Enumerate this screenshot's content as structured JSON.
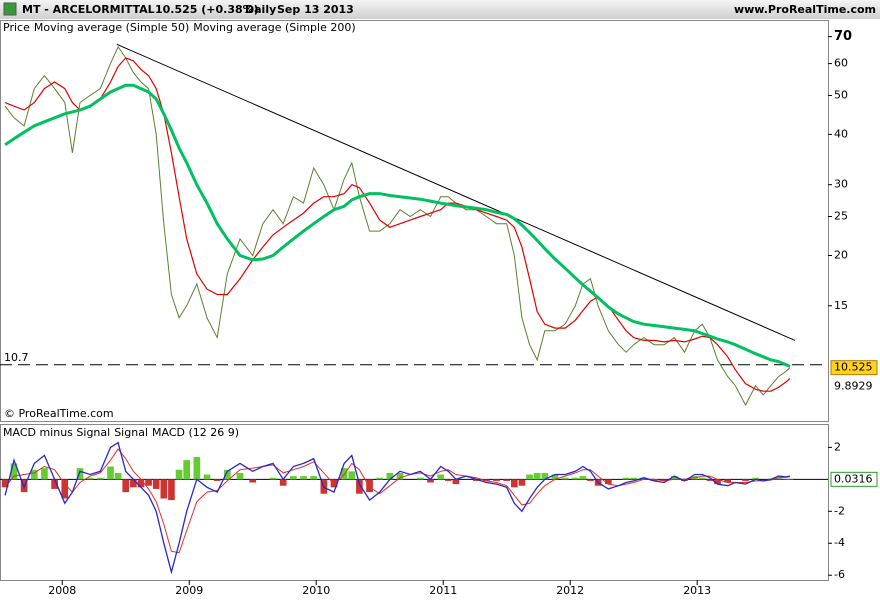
{
  "header": {
    "symbol": "MT - ARCELORMITTAL",
    "quote": "10.525 (+0.38%)",
    "period": "Daily",
    "date": "Sep 13 2013",
    "site": "www.ProRealTime.com"
  },
  "chart_data": [
    {
      "type": "line",
      "log_y": true,
      "copyright": "© ProRealTime.com",
      "x": [
        2007.55,
        2007.62,
        2007.7,
        2007.78,
        2007.86,
        2007.94,
        2008.02,
        2008.08,
        2008.14,
        2008.22,
        2008.3,
        2008.38,
        2008.44,
        2008.5,
        2008.56,
        2008.62,
        2008.68,
        2008.74,
        2008.8,
        2008.86,
        2008.92,
        2008.98,
        2009.06,
        2009.14,
        2009.22,
        2009.3,
        2009.4,
        2009.5,
        2009.58,
        2009.66,
        2009.74,
        2009.82,
        2009.9,
        2009.98,
        2010.06,
        2010.14,
        2010.22,
        2010.28,
        2010.34,
        2010.42,
        2010.5,
        2010.58,
        2010.66,
        2010.74,
        2010.82,
        2010.9,
        2010.98,
        2011.04,
        2011.1,
        2011.18,
        2011.26,
        2011.34,
        2011.42,
        2011.5,
        2011.56,
        2011.62,
        2011.68,
        2011.74,
        2011.8,
        2011.88,
        2011.96,
        2012.04,
        2012.1,
        2012.16,
        2012.22,
        2012.3,
        2012.38,
        2012.44,
        2012.5,
        2012.58,
        2012.66,
        2012.74,
        2012.82,
        2012.9,
        2012.98,
        2013.04,
        2013.1,
        2013.16,
        2013.24,
        2013.3,
        2013.38,
        2013.46,
        2013.52,
        2013.58,
        2013.64,
        2013.7,
        2013.73
      ],
      "series": [
        {
          "name": "Price",
          "color": "#5f7f2f",
          "width": 1,
          "values": [
            47,
            44,
            42,
            52,
            56,
            52,
            48,
            36,
            48,
            50,
            52,
            60,
            66,
            62,
            57,
            54,
            52,
            40,
            24,
            16,
            14,
            15,
            17,
            14,
            12.5,
            18,
            22,
            20,
            24,
            26,
            24,
            28,
            27,
            33,
            30,
            26,
            31,
            34,
            28,
            23,
            23,
            24,
            26,
            25,
            26,
            25,
            28,
            28,
            27,
            26,
            26,
            25,
            24,
            24,
            20,
            14,
            12,
            11,
            13,
            13,
            13.5,
            15,
            17,
            17.5,
            15,
            13,
            12,
            11.5,
            12,
            12.5,
            12,
            12,
            12.5,
            11.5,
            13,
            13.5,
            12.5,
            11,
            10,
            9.5,
            8.5,
            9.5,
            9,
            9.5,
            10,
            10.3,
            10.525
          ]
        },
        {
          "name": "Moving average (Simple 50)",
          "color": "#e00000",
          "width": 1.2,
          "values": [
            48,
            47,
            46,
            48,
            52,
            54,
            52,
            48,
            46,
            47,
            49,
            54,
            59,
            62,
            61,
            58,
            56,
            52,
            45,
            36,
            28,
            22,
            18,
            16.5,
            16,
            16,
            17.5,
            19.5,
            21,
            22.5,
            23.5,
            24.5,
            25.5,
            27,
            28,
            28,
            28.5,
            30,
            29.5,
            27,
            24.5,
            23.5,
            24,
            24.5,
            25,
            25.5,
            26,
            27,
            27,
            26.5,
            26,
            25.5,
            25,
            24.5,
            23.5,
            21,
            17.5,
            14.5,
            13.5,
            13.2,
            13.2,
            13.8,
            14.6,
            15.4,
            15.8,
            15,
            13.8,
            13,
            12.5,
            12.3,
            12.3,
            12.2,
            12.3,
            12.2,
            12.4,
            12.6,
            12.5,
            12,
            11.2,
            10.4,
            9.6,
            9.3,
            9.2,
            9.2,
            9.4,
            9.7,
            9.8929
          ]
        },
        {
          "name": "Moving average (Simple 200)",
          "color": "#00c060",
          "width": 3,
          "values": [
            37.7,
            39,
            40.5,
            42,
            43,
            44,
            45,
            45.5,
            46,
            47,
            49,
            51,
            52,
            53,
            53,
            52,
            51,
            49,
            45,
            41,
            37,
            34,
            30,
            27,
            24,
            22,
            20,
            19.5,
            19.6,
            20,
            21,
            22,
            23,
            24,
            25,
            26,
            26.5,
            27.5,
            28,
            28.5,
            28.5,
            28.2,
            28,
            27.8,
            27.6,
            27.3,
            27,
            26.8,
            26.6,
            26.4,
            26.2,
            26,
            25.6,
            25.3,
            24.7,
            23.8,
            22.8,
            21.8,
            20.8,
            19.6,
            18.6,
            17.6,
            16.9,
            16.3,
            15.7,
            14.9,
            14.3,
            14,
            13.7,
            13.5,
            13.4,
            13.3,
            13.2,
            13.1,
            13,
            12.8,
            12.6,
            12.4,
            12.2,
            12,
            11.7,
            11.4,
            11.2,
            11,
            10.9,
            10.7,
            10.6
          ]
        }
      ],
      "hline": 10.7,
      "trendline": {
        "x": [
          2008.43,
          2013.77
        ],
        "y": [
          67,
          12.3
        ]
      },
      "xlim": [
        2007.51,
        2014.03
      ],
      "ylim": [
        7.8,
        77
      ],
      "yticks": [
        15,
        20,
        25,
        30,
        40,
        50,
        60,
        70
      ]
    },
    {
      "type": "macd",
      "x": [
        2007.55,
        2007.62,
        2007.7,
        2007.78,
        2007.86,
        2007.94,
        2008.02,
        2008.08,
        2008.14,
        2008.22,
        2008.3,
        2008.38,
        2008.44,
        2008.5,
        2008.56,
        2008.62,
        2008.68,
        2008.74,
        2008.8,
        2008.86,
        2008.92,
        2008.98,
        2009.06,
        2009.14,
        2009.22,
        2009.3,
        2009.4,
        2009.5,
        2009.58,
        2009.66,
        2009.74,
        2009.82,
        2009.9,
        2009.98,
        2010.06,
        2010.14,
        2010.22,
        2010.28,
        2010.34,
        2010.42,
        2010.5,
        2010.58,
        2010.66,
        2010.74,
        2010.82,
        2010.9,
        2010.98,
        2011.04,
        2011.1,
        2011.18,
        2011.26,
        2011.34,
        2011.42,
        2011.5,
        2011.56,
        2011.62,
        2011.68,
        2011.74,
        2011.8,
        2011.88,
        2011.96,
        2012.04,
        2012.1,
        2012.16,
        2012.22,
        2012.3,
        2012.38,
        2012.44,
        2012.5,
        2012.58,
        2012.66,
        2012.74,
        2012.82,
        2012.9,
        2012.98,
        2013.04,
        2013.1,
        2013.16,
        2013.24,
        2013.3,
        2013.38,
        2013.46,
        2013.52,
        2013.58,
        2013.64,
        2013.7,
        2013.73
      ],
      "series": [
        {
          "name": "MACD minus Signal",
          "color": "#66cc33",
          "neg_color": "#cc3333",
          "values": [
            -0.5,
            1,
            -0.8,
            0.6,
            0.7,
            -0.6,
            -1.2,
            0,
            0.7,
            0.1,
            0.1,
            0.8,
            0.4,
            -0.8,
            -0.5,
            -0.5,
            -0.4,
            -0.6,
            -1.2,
            -1.3,
            0.6,
            1.2,
            1.4,
            0.3,
            -0.1,
            0.6,
            0.4,
            -0.2,
            0,
            0.1,
            -0.4,
            0.2,
            0.2,
            0.2,
            -0.9,
            -0.5,
            0.7,
            0.5,
            -0.9,
            -0.8,
            0.1,
            0.4,
            0.4,
            0,
            0.1,
            -0.2,
            0.3,
            -0.1,
            -0.3,
            0,
            -0.1,
            -0.1,
            -0.1,
            -0.1,
            -0.5,
            -0.4,
            0.3,
            0.4,
            0.4,
            0.3,
            0.1,
            0.1,
            0.2,
            -0.1,
            -0.4,
            -0.3,
            0,
            0.1,
            0.1,
            0.1,
            -0.1,
            -0.1,
            0.2,
            -0.1,
            0.2,
            0.1,
            -0.1,
            -0.3,
            -0.2,
            0,
            -0.1,
            0.1,
            0,
            0.05,
            0.1,
            0.02,
            0.0316
          ]
        },
        {
          "name": "Signal",
          "color": "#e03030",
          "values": [
            -0.5,
            0.2,
            0.3,
            0.4,
            0.8,
            0.6,
            -0.3,
            -0.8,
            -0.2,
            0.2,
            0.4,
            1.2,
            1.9,
            1.3,
            0.5,
            0,
            -0.6,
            -1.4,
            -2.8,
            -4.5,
            -4.6,
            -3.2,
            -1.4,
            -0.8,
            -0.7,
            -0.1,
            0.6,
            0.7,
            0.8,
            0.9,
            0.4,
            0.6,
            0.8,
            1.1,
            0.4,
            -0.3,
            0.3,
            1,
            0.6,
            -0.5,
            -0.9,
            -0.4,
            0.1,
            0.3,
            0.4,
            0.2,
            0.5,
            0.6,
            0.3,
            0.2,
            0.1,
            -0.1,
            -0.2,
            -0.4,
            -1,
            -1.6,
            -1.5,
            -0.9,
            -0.4,
            0,
            0.2,
            0.4,
            0.6,
            0.6,
            0.2,
            -0.3,
            -0.4,
            -0.3,
            -0.2,
            0,
            0,
            -0.1,
            0,
            0,
            0.1,
            0.2,
            0.2,
            0,
            -0.2,
            -0.2,
            -0.2,
            -0.1,
            -0.1,
            -0.05,
            0.1,
            0.13,
            0.1684
          ]
        },
        {
          "name": "MACD (12 26 9)",
          "color": "#2828c8",
          "values": [
            -1,
            1.2,
            -0.5,
            1,
            1.5,
            0,
            -1.5,
            -0.8,
            0.5,
            0.3,
            0.5,
            2,
            2.3,
            0.5,
            0,
            -0.5,
            -1,
            -2,
            -4,
            -5.8,
            -4,
            -2,
            0,
            -0.5,
            -0.8,
            0.5,
            1,
            0.5,
            0.8,
            1,
            0,
            0.8,
            1,
            1.3,
            -0.5,
            -0.8,
            1,
            1.5,
            -0.3,
            -1.3,
            -0.8,
            0,
            0.5,
            0.3,
            0.5,
            0,
            0.8,
            0.5,
            0,
            0.2,
            0,
            -0.2,
            -0.3,
            -0.5,
            -1.5,
            -2,
            -1.2,
            -0.5,
            0,
            0.3,
            0.3,
            0.5,
            0.8,
            0.5,
            -0.2,
            -0.6,
            -0.4,
            -0.2,
            -0.1,
            0.1,
            -0.1,
            -0.2,
            0.2,
            -0.1,
            0.3,
            0.3,
            0.1,
            -0.3,
            -0.4,
            -0.2,
            -0.3,
            0,
            -0.1,
            0,
            0.2,
            0.15,
            0.2
          ]
        }
      ],
      "xlim": [
        2007.51,
        2014.03
      ],
      "xticks": [
        2008,
        2009,
        2010,
        2011,
        2012,
        2013
      ],
      "ylim": [
        -6.3,
        3.4
      ],
      "yticks": [
        -6,
        -4,
        -2,
        2
      ]
    }
  ]
}
